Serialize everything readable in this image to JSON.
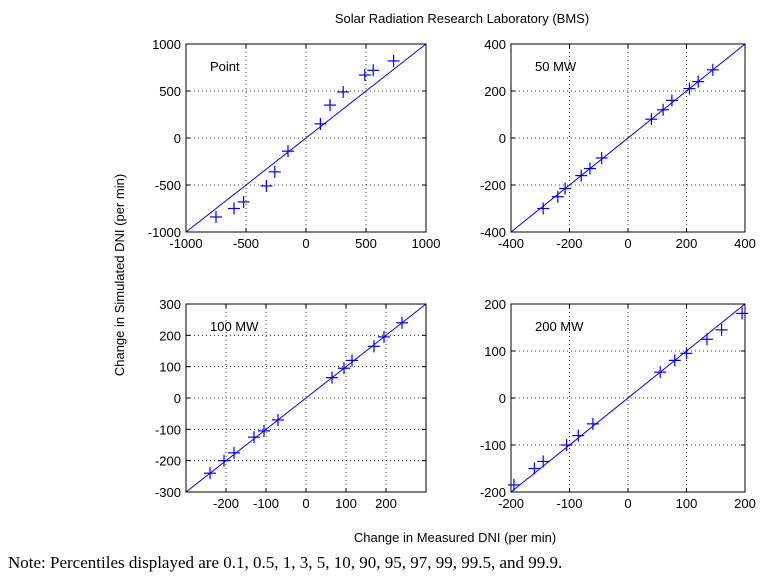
{
  "figure": {
    "title": "Solar Radiation Research Laboratory (BMS)",
    "xlabel": "Change in Measured DNI (per min)",
    "ylabel": "Change in Simulated DNI (per min)",
    "note": "Note: Percentiles displayed are 0.1, 0.5, 1, 3, 5, 10, 90, 95, 97, 99, 99.5, and 99.9."
  },
  "colors": {
    "series": "#0000ff",
    "axes": "#000000",
    "grid": "#000000"
  },
  "chart_data": [
    {
      "type": "scatter",
      "label": "Point",
      "grid": true,
      "xlim": [
        -1000,
        1000
      ],
      "ylim": [
        -1000,
        1000
      ],
      "xticks": [
        -1000,
        -500,
        0,
        500,
        1000
      ],
      "yticks": [
        -1000,
        -500,
        0,
        500,
        1000
      ],
      "identity_line": [
        [
          -1000,
          -1000
        ],
        [
          1000,
          1000
        ]
      ],
      "x": [
        -750,
        -600,
        -520,
        -330,
        -260,
        -150,
        120,
        200,
        310,
        490,
        560,
        730
      ],
      "y": [
        -840,
        -750,
        -680,
        -510,
        -360,
        -140,
        150,
        350,
        490,
        670,
        720,
        820
      ]
    },
    {
      "type": "scatter",
      "label": "50 MW",
      "grid": true,
      "xlim": [
        -400,
        400
      ],
      "ylim": [
        -400,
        400
      ],
      "xticks": [
        -400,
        -200,
        0,
        200,
        400
      ],
      "yticks": [
        -400,
        -200,
        0,
        200,
        400
      ],
      "identity_line": [
        [
          -400,
          -400
        ],
        [
          400,
          400
        ]
      ],
      "x": [
        -290,
        -240,
        -215,
        -160,
        -130,
        -90,
        80,
        120,
        150,
        210,
        240,
        290
      ],
      "y": [
        -300,
        -250,
        -215,
        -160,
        -130,
        -85,
        80,
        120,
        160,
        210,
        240,
        290
      ]
    },
    {
      "type": "scatter",
      "label": "100 MW",
      "grid": true,
      "xlim": [
        -300,
        300
      ],
      "ylim": [
        -300,
        300
      ],
      "xticks": [
        -200,
        -100,
        0,
        100,
        200
      ],
      "yticks": [
        -300,
        -200,
        -100,
        0,
        100,
        200,
        300
      ],
      "identity_line": [
        [
          -300,
          -300
        ],
        [
          300,
          300
        ]
      ],
      "x": [
        -240,
        -205,
        -180,
        -130,
        -105,
        -70,
        65,
        95,
        115,
        170,
        195,
        240
      ],
      "y": [
        -240,
        -200,
        -175,
        -125,
        -105,
        -70,
        65,
        95,
        120,
        165,
        195,
        240
      ]
    },
    {
      "type": "scatter",
      "label": "200 MW",
      "grid": true,
      "xlim": [
        -200,
        200
      ],
      "ylim": [
        -200,
        200
      ],
      "xticks": [
        -200,
        -100,
        0,
        100,
        200
      ],
      "yticks": [
        -200,
        -100,
        0,
        100,
        200
      ],
      "identity_line": [
        [
          -200,
          -200
        ],
        [
          200,
          200
        ]
      ],
      "x": [
        -195,
        -160,
        -145,
        -105,
        -85,
        -60,
        55,
        80,
        100,
        135,
        160,
        195
      ],
      "y": [
        -185,
        -150,
        -135,
        -100,
        -80,
        -55,
        55,
        80,
        95,
        125,
        145,
        180
      ]
    }
  ]
}
